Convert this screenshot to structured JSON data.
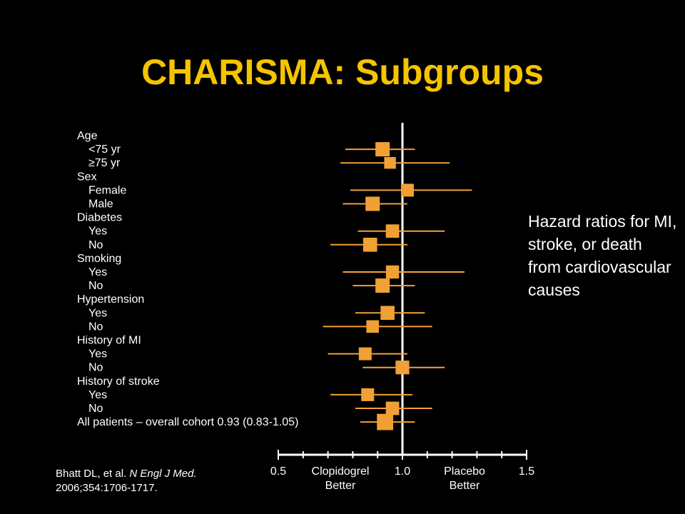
{
  "slide": {
    "title": "CHARISMA: Subgroups",
    "note": "Hazard ratios for MI, stroke, or death from cardiovascular causes",
    "citation": {
      "authors": "Bhatt DL, et al.",
      "journal": "N Engl J Med.",
      "ref": "2006;354:1706-1717."
    }
  },
  "chart_data": {
    "type": "forest",
    "x_ticks": [
      "0.5",
      "1.0",
      "1.5"
    ],
    "xlim": [
      0.5,
      1.5
    ],
    "reference_line": 1.0,
    "x_sublabels": [
      {
        "text": "Clopidogrel Better",
        "at": 0.75
      },
      {
        "text": "Placebo Better",
        "at": 1.25
      }
    ],
    "rows": [
      {
        "label": "Age",
        "indent": 0,
        "header": true
      },
      {
        "label": "<75 yr",
        "indent": 1,
        "hr": 0.92,
        "lo": 0.77,
        "hi": 1.05,
        "weight": 1.0
      },
      {
        "label": "≥75 yr",
        "indent": 1,
        "hr": 0.95,
        "lo": 0.75,
        "hi": 1.19,
        "weight": 0.55
      },
      {
        "label": "Sex",
        "indent": 0,
        "header": true
      },
      {
        "label": "Female",
        "indent": 1,
        "hr": 1.02,
        "lo": 0.79,
        "hi": 1.28,
        "weight": 0.75
      },
      {
        "label": "Male",
        "indent": 1,
        "hr": 0.88,
        "lo": 0.76,
        "hi": 1.02,
        "weight": 1.0
      },
      {
        "label": "Diabetes",
        "indent": 0,
        "header": true
      },
      {
        "label": "Yes",
        "indent": 1,
        "hr": 0.96,
        "lo": 0.82,
        "hi": 1.17,
        "weight": 0.85
      },
      {
        "label": "No",
        "indent": 1,
        "hr": 0.87,
        "lo": 0.71,
        "hi": 1.02,
        "weight": 0.95
      },
      {
        "label": "Smoking",
        "indent": 0,
        "header": true
      },
      {
        "label": "Yes",
        "indent": 1,
        "hr": 0.96,
        "lo": 0.76,
        "hi": 1.25,
        "weight": 0.8
      },
      {
        "label": "No",
        "indent": 1,
        "hr": 0.92,
        "lo": 0.8,
        "hi": 1.05,
        "weight": 1.0
      },
      {
        "label": "Hypertension",
        "indent": 0,
        "header": true
      },
      {
        "label": "Yes",
        "indent": 1,
        "hr": 0.94,
        "lo": 0.81,
        "hi": 1.09,
        "weight": 0.95
      },
      {
        "label": "No",
        "indent": 1,
        "hr": 0.88,
        "lo": 0.68,
        "hi": 1.12,
        "weight": 0.7
      },
      {
        "label": "History of MI",
        "indent": 0,
        "header": true
      },
      {
        "label": "Yes",
        "indent": 1,
        "hr": 0.85,
        "lo": 0.7,
        "hi": 1.02,
        "weight": 0.75
      },
      {
        "label": "No",
        "indent": 1,
        "hr": 1.0,
        "lo": 0.84,
        "hi": 1.17,
        "weight": 0.9
      },
      {
        "label": "History of stroke",
        "indent": 0,
        "header": true
      },
      {
        "label": "Yes",
        "indent": 1,
        "hr": 0.86,
        "lo": 0.71,
        "hi": 1.04,
        "weight": 0.75
      },
      {
        "label": "No",
        "indent": 1,
        "hr": 0.96,
        "lo": 0.81,
        "hi": 1.12,
        "weight": 0.85
      },
      {
        "label": "All patients – overall cohort 0.93 (0.83-1.05)",
        "indent": 0,
        "hr": 0.93,
        "lo": 0.83,
        "hi": 1.05,
        "weight": 1.35
      }
    ]
  },
  "colors": {
    "title": "#f5c400",
    "marker": "#f0a035",
    "axis": "#ffffff",
    "text": "#ffffff",
    "background": "#000000"
  }
}
